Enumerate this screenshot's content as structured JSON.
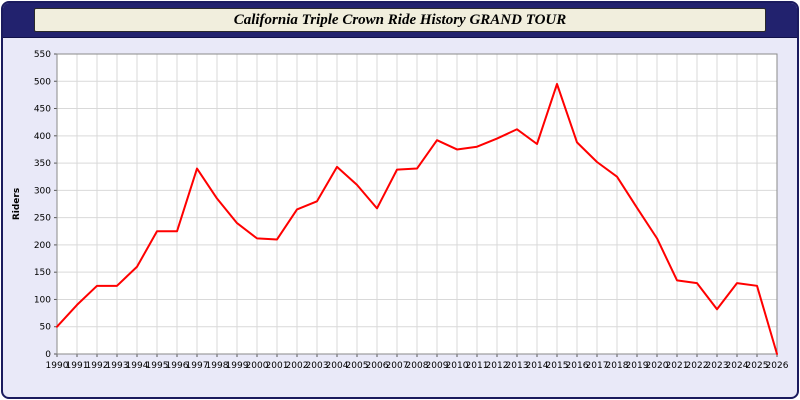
{
  "header": {
    "title": "California Triple Crown Ride History GRAND TOUR"
  },
  "chart_data": {
    "type": "line",
    "title": "California Triple Crown Ride History GRAND TOUR",
    "xlabel": "",
    "ylabel": "Riders",
    "ylim": [
      0,
      550
    ],
    "ytick_step": 50,
    "grid": true,
    "legend": "none",
    "line_color": "#ff0000",
    "grid_color": "#d9d9d9",
    "plot_bg": "#ffffff",
    "page_bg": "#e9e9f8",
    "x": [
      1990,
      1991,
      1992,
      1993,
      1994,
      1995,
      1996,
      1997,
      1998,
      1999,
      2000,
      2001,
      2002,
      2003,
      2004,
      2005,
      2006,
      2007,
      2008,
      2009,
      2010,
      2011,
      2012,
      2013,
      2014,
      2015,
      2016,
      2017,
      2018,
      2019,
      2020,
      2021,
      2022,
      2023,
      2024,
      2025,
      2026
    ],
    "series": [
      {
        "name": "Riders",
        "values": [
          50,
          90,
          125,
          125,
          160,
          225,
          225,
          340,
          285,
          240,
          212,
          210,
          265,
          280,
          343,
          310,
          267,
          338,
          340,
          392,
          375,
          380,
          395,
          412,
          385,
          495,
          388,
          352,
          325,
          268,
          212,
          135,
          130,
          82,
          130,
          125,
          0
        ]
      }
    ]
  }
}
